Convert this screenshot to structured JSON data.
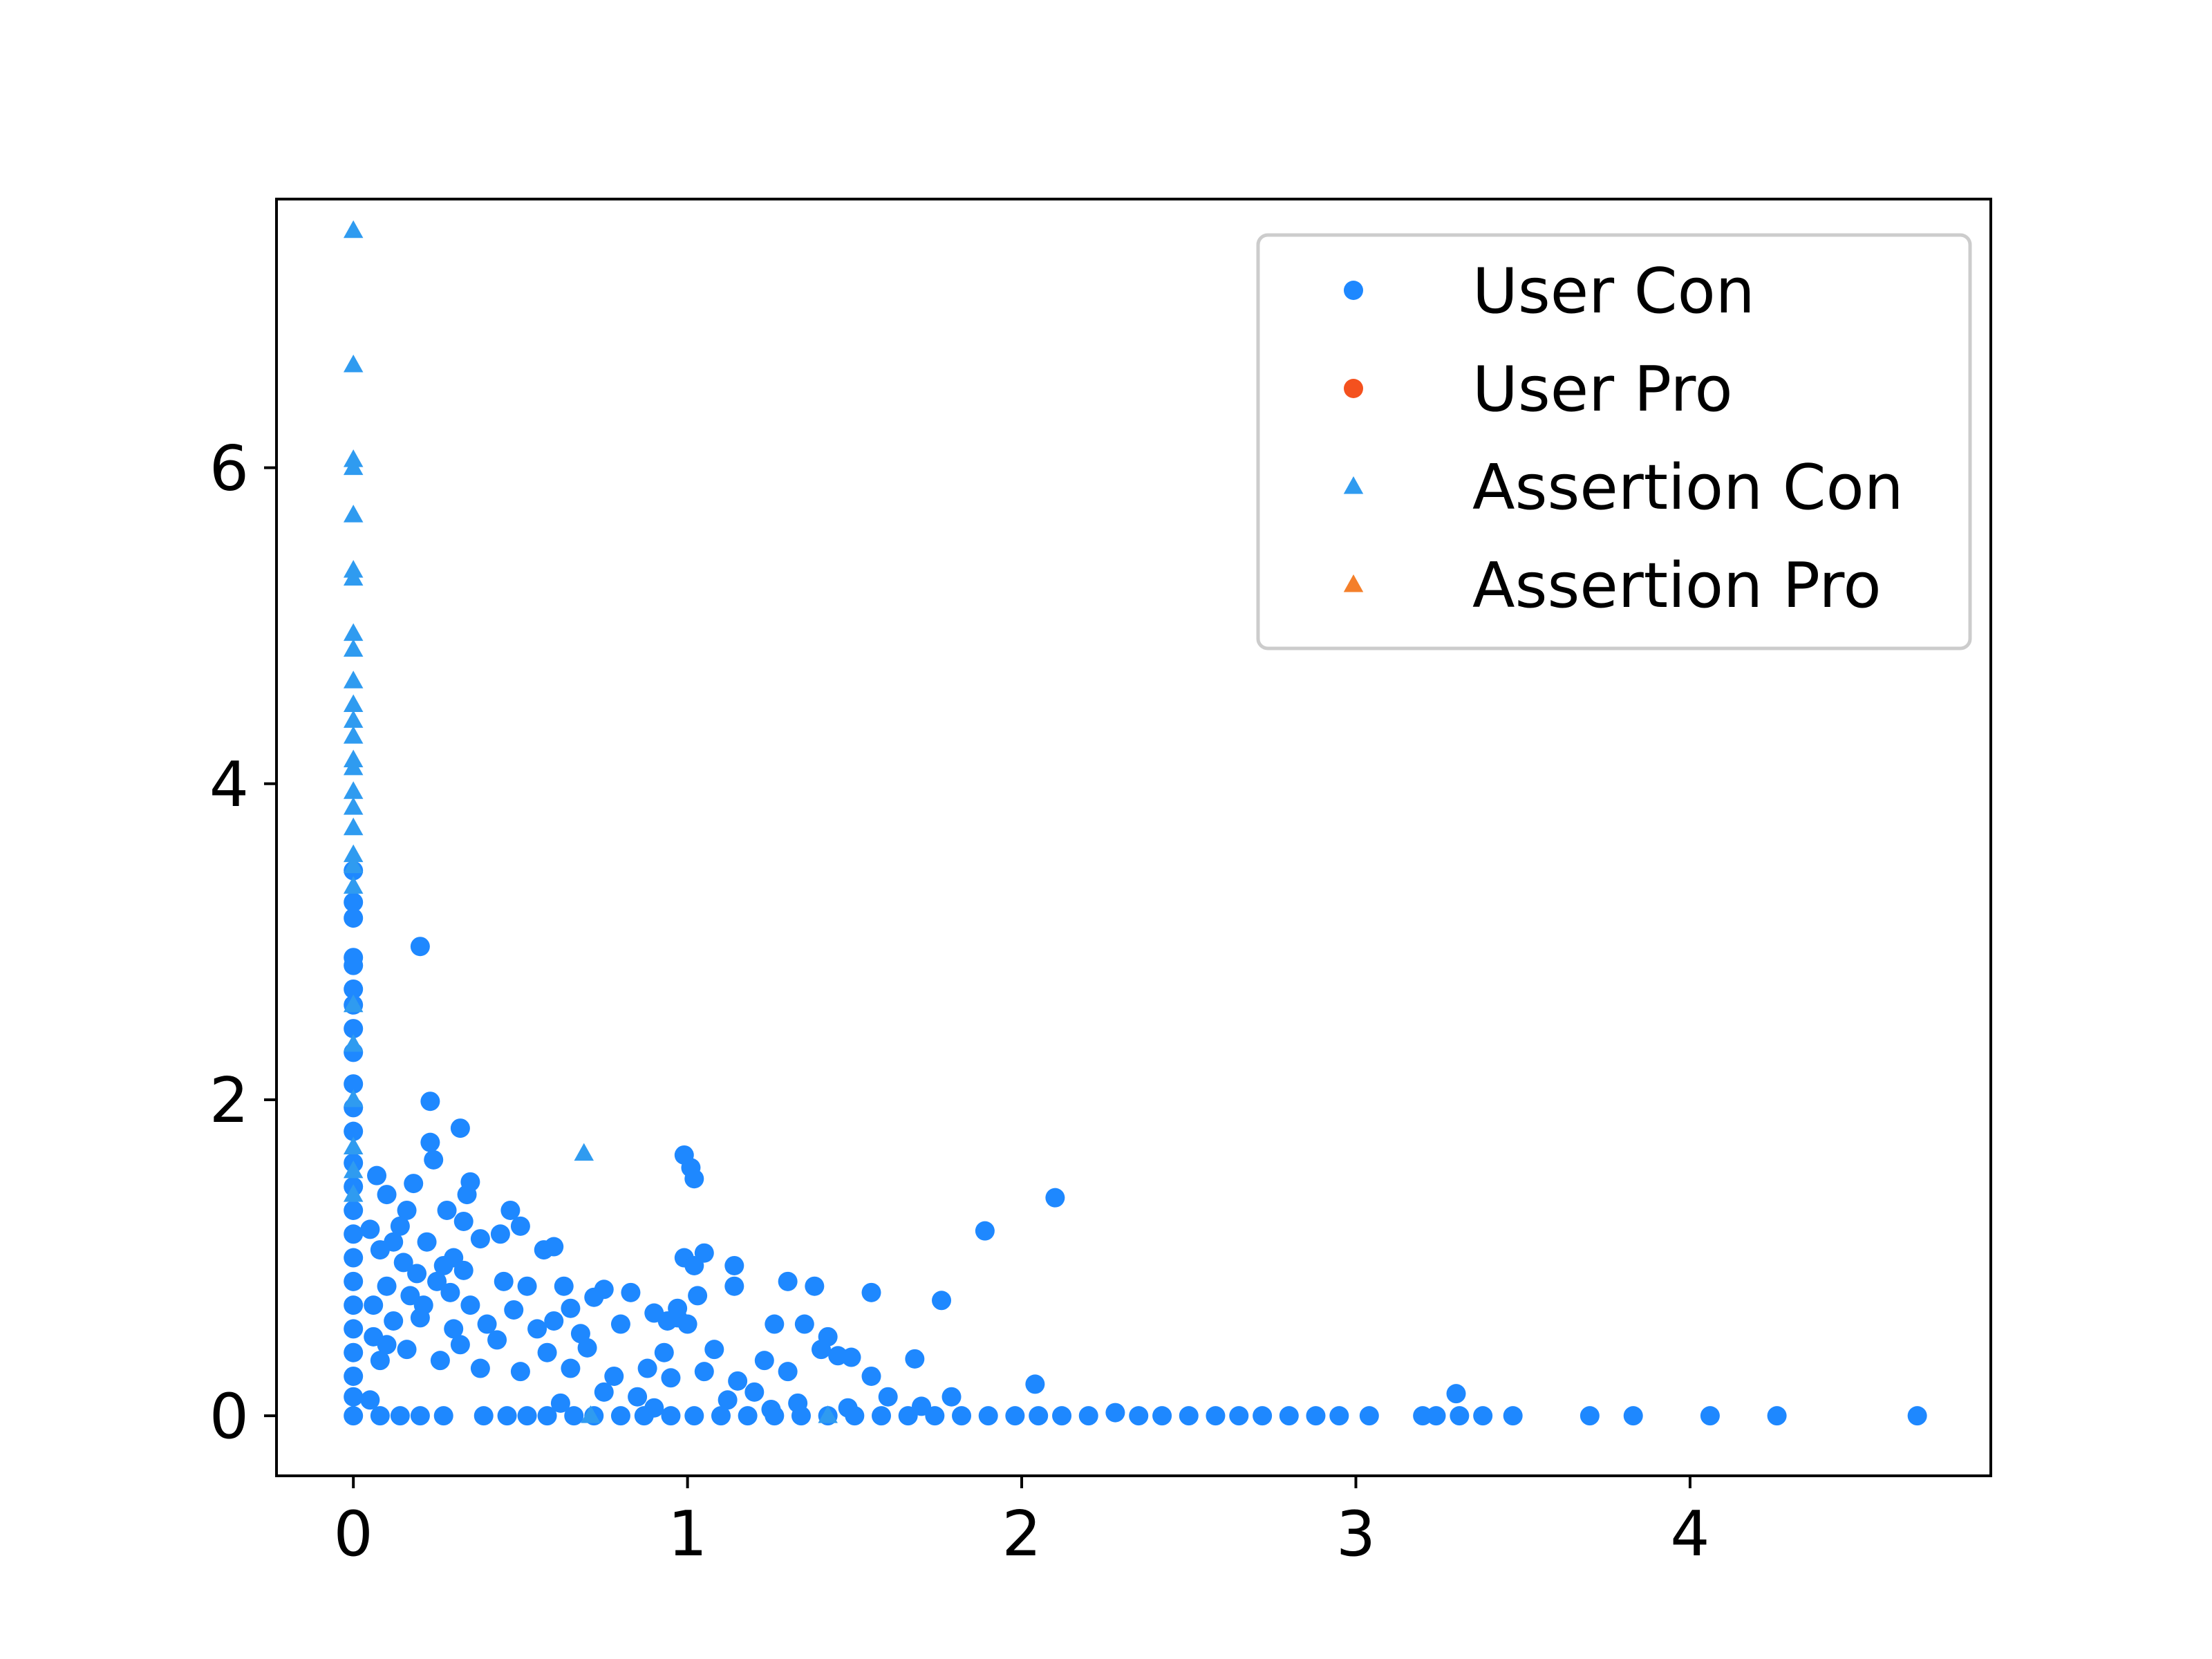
{
  "chart_data": {
    "type": "scatter",
    "title": "",
    "xlabel": "",
    "ylabel": "",
    "xlim": [
      -0.23,
      4.9
    ],
    "ylim": [
      -0.38,
      7.7
    ],
    "xticks": [
      0,
      1,
      2,
      3,
      4
    ],
    "yticks": [
      0,
      2,
      4,
      6
    ],
    "grid": false,
    "legend": {
      "placement": "top-right"
    },
    "series": [
      {
        "name": "User Con",
        "marker": "circle",
        "color": "#1e88ff",
        "points": [
          [
            0.2,
            2.97
          ],
          [
            0.23,
            1.99
          ],
          [
            0.32,
            1.82
          ],
          [
            0.23,
            1.73
          ],
          [
            0.24,
            1.62
          ],
          [
            0.07,
            1.52
          ],
          [
            0.18,
            1.47
          ],
          [
            0.35,
            1.48
          ],
          [
            0.34,
            1.4
          ],
          [
            0.1,
            1.4
          ],
          [
            0.16,
            1.3
          ],
          [
            0.28,
            1.3
          ],
          [
            0.47,
            1.3
          ],
          [
            0.5,
            1.2
          ],
          [
            0.44,
            1.15
          ],
          [
            0.33,
            1.23
          ],
          [
            0.14,
            1.2
          ],
          [
            0.22,
            1.1
          ],
          [
            0.38,
            1.12
          ],
          [
            0.57,
            1.05
          ],
          [
            0.6,
            1.07
          ],
          [
            0.12,
            1.1
          ],
          [
            0.05,
            1.18
          ],
          [
            0.08,
            1.05
          ],
          [
            0.3,
            1.0
          ],
          [
            0.27,
            0.95
          ],
          [
            0.15,
            0.97
          ],
          [
            0.19,
            0.9
          ],
          [
            0.25,
            0.85
          ],
          [
            0.33,
            0.92
          ],
          [
            0.45,
            0.85
          ],
          [
            0.52,
            0.82
          ],
          [
            0.63,
            0.82
          ],
          [
            0.75,
            0.8
          ],
          [
            0.83,
            0.78
          ],
          [
            0.1,
            0.82
          ],
          [
            0.17,
            0.76
          ],
          [
            0.21,
            0.7
          ],
          [
            0.29,
            0.78
          ],
          [
            0.35,
            0.7
          ],
          [
            0.48,
            0.67
          ],
          [
            0.65,
            0.68
          ],
          [
            0.72,
            0.75
          ],
          [
            0.9,
            0.65
          ],
          [
            0.94,
            0.6
          ],
          [
            0.97,
            0.62
          ],
          [
            0.06,
            0.7
          ],
          [
            0.12,
            0.6
          ],
          [
            0.2,
            0.62
          ],
          [
            0.3,
            0.55
          ],
          [
            0.4,
            0.58
          ],
          [
            0.55,
            0.55
          ],
          [
            0.6,
            0.6
          ],
          [
            0.68,
            0.52
          ],
          [
            0.8,
            0.58
          ],
          [
            0.06,
            0.5
          ],
          [
            0.1,
            0.45
          ],
          [
            0.16,
            0.42
          ],
          [
            0.32,
            0.45
          ],
          [
            0.43,
            0.48
          ],
          [
            0.58,
            0.4
          ],
          [
            0.7,
            0.43
          ],
          [
            0.08,
            0.35
          ],
          [
            0.26,
            0.35
          ],
          [
            0.38,
            0.3
          ],
          [
            0.5,
            0.28
          ],
          [
            0.65,
            0.3
          ],
          [
            0.78,
            0.25
          ],
          [
            0.88,
            0.3
          ],
          [
            0.95,
            0.24
          ],
          [
            1.05,
            0.28
          ],
          [
            1.15,
            0.22
          ],
          [
            0.99,
            1.65
          ],
          [
            1.01,
            1.57
          ],
          [
            1.02,
            1.5
          ],
          [
            0.99,
            1.0
          ],
          [
            1.05,
            1.03
          ],
          [
            1.02,
            0.95
          ],
          [
            1.14,
            0.95
          ],
          [
            1.14,
            0.82
          ],
          [
            1.03,
            0.76
          ],
          [
            0.97,
            0.68
          ],
          [
            1.0,
            0.58
          ],
          [
            0.93,
            0.4
          ],
          [
            1.08,
            0.42
          ],
          [
            1.23,
            0.35
          ],
          [
            1.3,
            0.85
          ],
          [
            1.38,
            0.82
          ],
          [
            1.55,
            0.78
          ],
          [
            1.76,
            0.73
          ],
          [
            1.26,
            0.58
          ],
          [
            1.35,
            0.58
          ],
          [
            1.42,
            0.5
          ],
          [
            1.45,
            0.38
          ],
          [
            1.4,
            0.42
          ],
          [
            1.49,
            0.37
          ],
          [
            1.3,
            0.28
          ],
          [
            1.68,
            0.36
          ],
          [
            1.55,
            0.25
          ],
          [
            1.2,
            0.15
          ],
          [
            1.6,
            0.12
          ],
          [
            1.79,
            0.12
          ],
          [
            1.89,
            1.17
          ],
          [
            2.1,
            1.38
          ],
          [
            2.04,
            0.2
          ],
          [
            3.3,
            0.14
          ],
          [
            1.12,
            0.1
          ],
          [
            1.33,
            0.08
          ],
          [
            0.85,
            0.12
          ],
          [
            0.75,
            0.15
          ],
          [
            0.62,
            0.08
          ],
          [
            1.48,
            0.05
          ],
          [
            1.7,
            0.06
          ],
          [
            0.05,
            0.1
          ],
          [
            0.9,
            0.05
          ],
          [
            1.25,
            0.04
          ],
          [
            0.0,
            3.45
          ],
          [
            0.0,
            3.25
          ],
          [
            0.0,
            3.15
          ],
          [
            0.0,
            2.9
          ],
          [
            0.0,
            2.85
          ],
          [
            0.0,
            2.7
          ],
          [
            0.0,
            2.6
          ],
          [
            0.0,
            2.45
          ],
          [
            0.0,
            2.3
          ],
          [
            0.0,
            2.1
          ],
          [
            0.0,
            1.95
          ],
          [
            0.0,
            1.8
          ],
          [
            0.0,
            1.6
          ],
          [
            0.0,
            1.45
          ],
          [
            0.0,
            1.3
          ],
          [
            0.0,
            1.15
          ],
          [
            0.0,
            1.0
          ],
          [
            0.0,
            0.85
          ],
          [
            0.0,
            0.7
          ],
          [
            0.0,
            0.55
          ],
          [
            0.0,
            0.4
          ],
          [
            0.0,
            0.25
          ],
          [
            0.0,
            0.12
          ],
          [
            0.0,
            0.0
          ],
          [
            0.08,
            0.0
          ],
          [
            0.14,
            0.0
          ],
          [
            0.2,
            0.0
          ],
          [
            0.27,
            0.0
          ],
          [
            0.39,
            0.0
          ],
          [
            0.46,
            0.0
          ],
          [
            0.52,
            0.0
          ],
          [
            0.58,
            0.0
          ],
          [
            0.66,
            0.0
          ],
          [
            0.72,
            0.0
          ],
          [
            0.8,
            0.0
          ],
          [
            0.87,
            0.0
          ],
          [
            0.95,
            0.0
          ],
          [
            1.02,
            0.0
          ],
          [
            1.1,
            0.0
          ],
          [
            1.18,
            0.0
          ],
          [
            1.26,
            0.0
          ],
          [
            1.34,
            0.0
          ],
          [
            1.42,
            0.0
          ],
          [
            1.5,
            0.0
          ],
          [
            1.58,
            0.0
          ],
          [
            1.66,
            0.0
          ],
          [
            1.74,
            0.0
          ],
          [
            1.82,
            0.0
          ],
          [
            1.9,
            0.0
          ],
          [
            1.98,
            0.0
          ],
          [
            2.05,
            0.0
          ],
          [
            2.12,
            0.0
          ],
          [
            2.2,
            0.0
          ],
          [
            2.28,
            0.02
          ],
          [
            2.35,
            0.0
          ],
          [
            2.42,
            0.0
          ],
          [
            2.5,
            0.0
          ],
          [
            2.58,
            0.0
          ],
          [
            2.65,
            0.0
          ],
          [
            2.72,
            0.0
          ],
          [
            2.8,
            0.0
          ],
          [
            2.88,
            0.0
          ],
          [
            2.95,
            0.0
          ],
          [
            3.04,
            0.0
          ],
          [
            3.2,
            0.0
          ],
          [
            3.24,
            0.0
          ],
          [
            3.31,
            0.0
          ],
          [
            3.38,
            0.0
          ],
          [
            3.47,
            0.0
          ],
          [
            3.7,
            0.0
          ],
          [
            3.83,
            0.0
          ],
          [
            4.06,
            0.0
          ],
          [
            4.26,
            0.0
          ],
          [
            4.68,
            0.0
          ]
        ]
      },
      {
        "name": "User Pro",
        "marker": "circle",
        "color": "#f4511e",
        "points": []
      },
      {
        "name": "Assertion Con",
        "marker": "triangle",
        "color": "#2f9bf0",
        "points": [
          [
            0.0,
            7.5
          ],
          [
            0.0,
            6.65
          ],
          [
            0.0,
            6.05
          ],
          [
            0.0,
            6.0
          ],
          [
            0.0,
            5.7
          ],
          [
            0.0,
            5.35
          ],
          [
            0.0,
            5.3
          ],
          [
            0.0,
            4.95
          ],
          [
            0.0,
            4.85
          ],
          [
            0.0,
            4.65
          ],
          [
            0.0,
            4.5
          ],
          [
            0.0,
            4.4
          ],
          [
            0.0,
            4.3
          ],
          [
            0.0,
            4.15
          ],
          [
            0.0,
            4.1
          ],
          [
            0.0,
            3.95
          ],
          [
            0.0,
            3.85
          ],
          [
            0.0,
            3.72
          ],
          [
            0.0,
            3.55
          ],
          [
            0.0,
            3.48
          ],
          [
            0.0,
            3.35
          ],
          [
            0.0,
            2.6
          ],
          [
            0.0,
            2.35
          ],
          [
            0.0,
            2.0
          ],
          [
            0.0,
            1.7
          ],
          [
            0.0,
            1.55
          ],
          [
            0.0,
            1.4
          ],
          [
            0.69,
            1.66
          ],
          [
            0.71,
            0.0
          ],
          [
            1.42,
            0.0
          ]
        ]
      },
      {
        "name": "Assertion Pro",
        "marker": "triangle",
        "color": "#f47f2a",
        "points": []
      }
    ]
  }
}
